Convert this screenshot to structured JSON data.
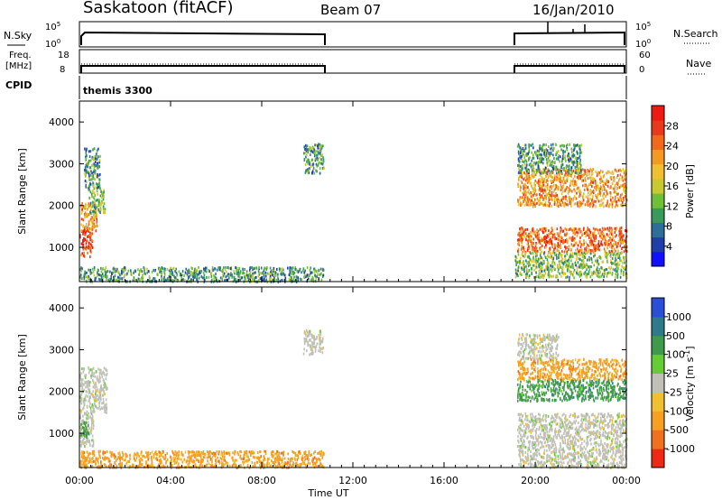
{
  "header": {
    "station": "Saskatoon (fitACF)",
    "beam": "Beam 07",
    "date": "16/Jan/2010"
  },
  "strip_panels": {
    "nsky": {
      "left_label": "N.Sky",
      "left_ticks": [
        "10^5",
        "10^0"
      ],
      "right_ticks": [
        "10^5",
        "10^0"
      ],
      "right_label": "N.Search"
    },
    "freq": {
      "left_label_line1": "Freq.",
      "left_label_line2": "[MHz]",
      "left_ticks": [
        "18",
        "8"
      ],
      "right_ticks": [
        "60",
        "0"
      ],
      "right_label": "Nave"
    },
    "cpid": {
      "left_label": "CPID",
      "program_text": "themis 3300"
    }
  },
  "panels": {
    "power": {
      "ylabel": "Slant Range [km]"
    },
    "velocity": {
      "ylabel": "Slant Range [km]"
    },
    "xlabel": "Time UT"
  },
  "colorbars": {
    "power": {
      "label": "Power [dB]",
      "ticks": [
        "28",
        "24",
        "20",
        "16",
        "12",
        "8",
        "4"
      ],
      "colors": [
        "#1010ff",
        "#1f3fa8",
        "#2e6f9a",
        "#3a9a5a",
        "#6fbf3a",
        "#c8c830",
        "#f0c030",
        "#f59a20",
        "#f06a1a",
        "#e83a1a",
        "#ee1a12"
      ]
    },
    "velocity": {
      "label": "Velocity [m s^-1]",
      "ticks": [
        "1000",
        "500",
        "100",
        "25",
        "-25",
        "-100",
        "-500",
        "-1000"
      ],
      "colors": [
        "#2a4ed8",
        "#2f7a8a",
        "#3f9a4a",
        "#66cc33",
        "#c0c0b8",
        "#f0c030",
        "#f5a020",
        "#f07020",
        "#ee2a16"
      ]
    }
  },
  "chart_data": {
    "type": "heatmap",
    "title": "Saskatoon (fitACF)",
    "xlabel": "Time UT",
    "x_ticks": [
      "00:00",
      "04:00",
      "08:00",
      "12:00",
      "16:00",
      "20:00",
      "00:00"
    ],
    "y_ticks": [
      "1000",
      "2000",
      "3000",
      "4000"
    ],
    "ylim": [
      180,
      4500
    ],
    "x_range_hours": [
      0,
      24
    ],
    "data_gap_hours": [
      10.75,
      19.0
    ],
    "power_regions": [
      {
        "t0": 0.0,
        "t1": 0.55,
        "r0": 800,
        "r1": 1500,
        "value_db": 28
      },
      {
        "t0": 0.05,
        "t1": 0.75,
        "r0": 1400,
        "r1": 2100,
        "value_db": 20
      },
      {
        "t0": 0.4,
        "t1": 1.1,
        "r0": 1800,
        "r1": 2400,
        "value_db": 12
      },
      {
        "t0": 0.2,
        "t1": 0.9,
        "r0": 2400,
        "r1": 3400,
        "value_db": 8
      },
      {
        "t0": 0.0,
        "t1": 10.7,
        "r0": 200,
        "r1": 550,
        "value_db": 8
      },
      {
        "t0": 9.8,
        "t1": 10.7,
        "r0": 2800,
        "r1": 3500,
        "value_db": 8
      },
      {
        "t0": 19.2,
        "t1": 24.0,
        "r0": 900,
        "r1": 1500,
        "value_db": 24
      },
      {
        "t0": 19.2,
        "t1": 24.0,
        "r0": 2000,
        "r1": 2900,
        "value_db": 20
      },
      {
        "t0": 19.2,
        "t1": 22.0,
        "r0": 2800,
        "r1": 3500,
        "value_db": 8
      },
      {
        "t0": 19.1,
        "t1": 24.0,
        "r0": 300,
        "r1": 900,
        "value_db": 12
      }
    ],
    "velocity_regions": [
      {
        "t0": 0.0,
        "t1": 0.6,
        "r0": 700,
        "r1": 1500,
        "value_ms": 25
      },
      {
        "t0": 0.0,
        "t1": 0.4,
        "r0": 900,
        "r1": 1300,
        "value_ms": 100
      },
      {
        "t0": 0.0,
        "t1": 1.2,
        "r0": 1500,
        "r1": 2600,
        "value_ms": 25
      },
      {
        "t0": 0.0,
        "t1": 10.7,
        "r0": 200,
        "r1": 600,
        "value_ms": -100
      },
      {
        "t0": 9.8,
        "t1": 10.7,
        "r0": 2900,
        "r1": 3500,
        "value_ms": 25
      },
      {
        "t0": 19.2,
        "t1": 24.0,
        "r0": 200,
        "r1": 1500,
        "value_ms": 25
      },
      {
        "t0": 19.2,
        "t1": 24.0,
        "r0": 2300,
        "r1": 2800,
        "value_ms": -100
      },
      {
        "t0": 19.2,
        "t1": 24.0,
        "r0": 1800,
        "r1": 2300,
        "value_ms": 100
      },
      {
        "t0": 19.2,
        "t1": 21.0,
        "r0": 2800,
        "r1": 3400,
        "value_ms": 25
      }
    ]
  }
}
